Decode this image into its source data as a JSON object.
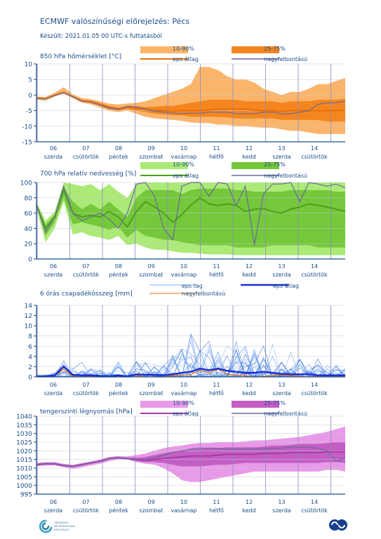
{
  "page": {
    "title": "ECMWF valószínűségi előrejelzés: Pécs",
    "subtitle": "Készült: 2021.01.05 00 UTC-s futtatásból",
    "logo_text": "ORSZÁGOS METEOROLÓGIAI SZOLGÁLAT"
  },
  "days": [
    {
      "num": "06",
      "name": "szerda"
    },
    {
      "num": "07",
      "name": "csütörtök"
    },
    {
      "num": "08",
      "name": "péntek"
    },
    {
      "num": "09",
      "name": "szombat"
    },
    {
      "num": "10",
      "name": "vasárnap"
    },
    {
      "num": "11",
      "name": "hétfő"
    },
    {
      "num": "12",
      "name": "kedd"
    },
    {
      "num": "13",
      "name": "szerda"
    },
    {
      "num": "14",
      "name": "csütörtök"
    }
  ],
  "chart_data": [
    {
      "type": "area",
      "title": "850 hPa hőmérséklet [°C]",
      "ylim": [
        -15,
        10
      ],
      "yticks": [
        -15,
        -10,
        -5,
        0,
        5,
        10
      ],
      "colors": {
        "band_outer": "#fbb56b",
        "band_inner": "#f5861f",
        "mean": "#e8700a",
        "hires": "#6a6a9a"
      },
      "legend": {
        "outer": "10-90%",
        "inner": "25-75%",
        "mean": "eps átlag",
        "hires": "nagyfelbontású"
      },
      "series": {
        "p10": [
          -1.5,
          -1.8,
          -0.5,
          0.4,
          -1.0,
          -2.5,
          -3.0,
          -4.0,
          -5.0,
          -5.5,
          -5.0,
          -6.0,
          -7.0,
          -7.5,
          -7.8,
          -8.0,
          -8.3,
          -8.8,
          -9.0,
          -9.0,
          -9.5,
          -9.5,
          -10.0,
          -10.0,
          -10.3,
          -10.5,
          -10.5,
          -11.0,
          -11.5,
          -11.5,
          -12.0,
          -12.5,
          -12.5,
          -12.5,
          -12.5
        ],
        "p25": [
          -1.2,
          -1.4,
          -0.2,
          0.6,
          -0.7,
          -2.0,
          -2.5,
          -3.5,
          -4.5,
          -5.0,
          -4.4,
          -5.0,
          -5.5,
          -6.0,
          -6.2,
          -6.5,
          -6.5,
          -7.0,
          -7.0,
          -7.0,
          -7.0,
          -7.2,
          -7.5,
          -7.5,
          -7.5,
          -7.5,
          -7.5,
          -8.0,
          -8.0,
          -8.0,
          -8.0,
          -8.0,
          -8.5,
          -8.5,
          -8.5
        ],
        "mean": [
          -1.0,
          -1.2,
          0.0,
          0.8,
          -0.5,
          -1.8,
          -2.2,
          -3.0,
          -4.0,
          -4.5,
          -4.0,
          -4.3,
          -4.6,
          -5.0,
          -5.0,
          -5.2,
          -5.0,
          -5.0,
          -5.0,
          -4.8,
          -4.5,
          -4.5,
          -4.5,
          -4.5,
          -4.8,
          -5.0,
          -5.0,
          -5.2,
          -5.0,
          -5.0,
          -5.0,
          -5.0,
          -5.0,
          -5.0,
          -4.8
        ],
        "p75": [
          -0.8,
          -1.0,
          0.2,
          1.0,
          -0.3,
          -1.5,
          -1.8,
          -2.6,
          -3.5,
          -4.0,
          -3.5,
          -3.6,
          -3.8,
          -3.8,
          -3.5,
          -3.5,
          -3.0,
          -2.5,
          -2.0,
          -1.5,
          -1.5,
          -1.5,
          -1.5,
          -2.0,
          -2.0,
          -2.0,
          -2.0,
          -2.5,
          -2.0,
          -2.0,
          -2.0,
          -1.5,
          -1.5,
          -1.5,
          -1.2
        ],
        "p90": [
          -0.5,
          -0.6,
          0.7,
          2.5,
          0.2,
          -1.0,
          -1.3,
          -2.0,
          -2.8,
          -3.0,
          -2.7,
          -2.5,
          -2.0,
          -1.0,
          0.0,
          1.0,
          2.0,
          3.5,
          9.0,
          9.0,
          8.0,
          6.0,
          5.0,
          5.0,
          4.0,
          2.0,
          1.0,
          0.0,
          1.0,
          1.0,
          2.0,
          3.5,
          3.5,
          4.5,
          5.5
        ],
        "hires": [
          -1.0,
          -1.2,
          -0.2,
          0.8,
          -0.6,
          -2.0,
          -2.3,
          -3.2,
          -4.2,
          -4.6,
          -3.6,
          -3.8,
          -4.5,
          -5.2,
          -5.5,
          -5.8,
          -6.0,
          -5.8,
          -5.8,
          -5.5,
          -5.5,
          -5.5,
          -6.0,
          -6.0,
          -6.0,
          -5.5,
          -5.5,
          -6.0,
          -6.0,
          -5.5,
          -5.0,
          -3.0,
          -2.5,
          -2.5,
          -2.0
        ]
      }
    },
    {
      "type": "area",
      "title": "700 hPa relatív nedvesség [%]",
      "ylim": [
        0,
        100
      ],
      "yticks": [
        0,
        20,
        40,
        60,
        80,
        100
      ],
      "colors": {
        "band_outer": "#acea78",
        "band_inner": "#74c83a",
        "mean": "#4f9e1c",
        "hires": "#6a6a9a"
      },
      "legend": {
        "outer": "10-90%",
        "inner": "25-75%",
        "mean": "eps átlag",
        "hires": "nagyfelbontású"
      },
      "series": {
        "p10": [
          65,
          22,
          40,
          75,
          32,
          35,
          30,
          28,
          25,
          30,
          18,
          20,
          15,
          12,
          12,
          10,
          8,
          8,
          7,
          6,
          6,
          6,
          5,
          5,
          5,
          5,
          5,
          5,
          5,
          5,
          5,
          5,
          5,
          5,
          5
        ],
        "p25": [
          70,
          30,
          48,
          80,
          45,
          48,
          45,
          42,
          38,
          42,
          28,
          38,
          30,
          28,
          25,
          25,
          22,
          20,
          18,
          18,
          18,
          18,
          15,
          15,
          15,
          15,
          18,
          18,
          18,
          18,
          18,
          15,
          15,
          15,
          15
        ],
        "mean": [
          70,
          40,
          55,
          90,
          60,
          55,
          57,
          55,
          62,
          55,
          42,
          62,
          75,
          68,
          60,
          48,
          58,
          70,
          80,
          72,
          70,
          72,
          70,
          62,
          65,
          66,
          62,
          60,
          65,
          68,
          72,
          70,
          68,
          65,
          62
        ],
        "p75": [
          72,
          45,
          58,
          93,
          75,
          65,
          72,
          65,
          75,
          65,
          55,
          80,
          90,
          90,
          90,
          90,
          85,
          90,
          92,
          92,
          92,
          92,
          90,
          90,
          88,
          88,
          88,
          88,
          90,
          90,
          90,
          90,
          90,
          88,
          88
        ],
        "p90": [
          75,
          50,
          62,
          100,
          98,
          95,
          98,
          90,
          98,
          88,
          80,
          98,
          100,
          100,
          100,
          100,
          100,
          100,
          100,
          100,
          100,
          100,
          100,
          100,
          100,
          100,
          100,
          100,
          100,
          100,
          100,
          100,
          100,
          100,
          100
        ],
        "hires": [
          72,
          35,
          55,
          95,
          60,
          50,
          55,
          60,
          52,
          40,
          60,
          98,
          100,
          82,
          40,
          25,
          95,
          100,
          100,
          82,
          100,
          98,
          70,
          95,
          18,
          85,
          98,
          98,
          100,
          75,
          100,
          98,
          95,
          98,
          93
        ]
      }
    },
    {
      "type": "line",
      "title": "6 órás csapadékösszeg [mm]",
      "ylim": [
        0,
        14
      ],
      "yticks": [
        0,
        2,
        4,
        6,
        8,
        10,
        12,
        14
      ],
      "colors": {
        "members": "#3a7be8",
        "mean": "#1c2fcf",
        "hires": "#e8700a"
      },
      "legend": {
        "members": "eps tag",
        "mean": "eps átlag",
        "hires": "nagyfelbontású"
      },
      "series": {
        "mean": [
          0.1,
          0.1,
          0.3,
          2.0,
          0.4,
          0.3,
          0.3,
          0.2,
          0.1,
          0.3,
          0.1,
          0.5,
          0.4,
          0.4,
          0.3,
          0.5,
          0.8,
          1.0,
          1.6,
          1.3,
          1.6,
          1.2,
          1.0,
          0.8,
          0.8,
          1.0,
          0.8,
          0.6,
          0.5,
          0.5,
          0.5,
          0.3,
          0.3,
          0.3,
          0.3
        ],
        "hires": [
          0.1,
          0.0,
          0.2,
          1.5,
          0.1,
          0.0,
          0.1,
          0.0,
          0.0,
          0.0,
          0.0,
          0.3,
          0.0,
          0.0,
          0.0,
          0.2,
          0.3,
          0.5,
          1.2,
          0.8,
          1.5,
          0.5,
          0.3,
          0.2,
          0.0,
          0.1,
          0.2,
          0.4,
          0.2,
          0.1,
          0.0,
          0.1,
          0.0,
          0.0,
          0.1
        ],
        "envelope": [
          0.5,
          0.6,
          1.5,
          3.2,
          1.8,
          3.0,
          1.8,
          1.5,
          1.0,
          3.0,
          1.0,
          3.5,
          3.0,
          2.5,
          2.5,
          4.5,
          6.5,
          8.5,
          9.2,
          8.5,
          9.2,
          8.5,
          7.5,
          6.5,
          5.5,
          6.5,
          7.5,
          6.0,
          5.0,
          4.5,
          4.5,
          4.0,
          3.5,
          3.0,
          2.5
        ]
      }
    },
    {
      "type": "area",
      "title": "tengerszinti légnyomás [hPa]",
      "ylim": [
        995,
        1040
      ],
      "yticks": [
        995,
        1000,
        1005,
        1010,
        1015,
        1020,
        1025,
        1030,
        1035,
        1040
      ],
      "colors": {
        "band_outer": "#e89ae8",
        "band_inner": "#c45ec4",
        "mean": "#a63ba6",
        "hires": "#6a6a9a"
      },
      "legend": {
        "outer": "10-90%",
        "inner": "25-75%",
        "mean": "eps átlag",
        "hires": "nagyfelbontású"
      },
      "series": {
        "p10": [
          1011,
          1011.5,
          1011.5,
          1010.5,
          1009.5,
          1010.5,
          1011.5,
          1012.5,
          1014,
          1015,
          1015,
          1013.5,
          1012.5,
          1012,
          1010,
          1007,
          1003,
          1002,
          1002,
          1003,
          1004,
          1005,
          1006,
          1007,
          1008,
          1008,
          1008,
          1008,
          1008,
          1008,
          1008,
          1008,
          1009,
          1009,
          1008
        ],
        "p25": [
          1011.5,
          1012,
          1012,
          1011,
          1010.5,
          1011.5,
          1012.5,
          1013.5,
          1015,
          1015.5,
          1015.2,
          1014,
          1013.5,
          1013.5,
          1013,
          1012,
          1011,
          1011,
          1011,
          1011.5,
          1012,
          1012,
          1012.5,
          1013,
          1013,
          1013,
          1013,
          1013,
          1013,
          1013,
          1013,
          1013,
          1013.5,
          1013.5,
          1013
        ],
        "mean": [
          1012,
          1012.5,
          1012.5,
          1011.5,
          1011,
          1012,
          1013,
          1014,
          1015.5,
          1016,
          1015.5,
          1015,
          1014.5,
          1015,
          1015.5,
          1016,
          1016.5,
          1017,
          1017,
          1017,
          1017.5,
          1018,
          1018,
          1018,
          1018,
          1018.5,
          1018.5,
          1018.5,
          1019,
          1019,
          1019,
          1019,
          1019.5,
          1019.5,
          1019.5
        ],
        "p75": [
          1012.5,
          1013,
          1013,
          1012,
          1011.5,
          1012.5,
          1013.5,
          1014.5,
          1016,
          1016.5,
          1016,
          1016,
          1016.5,
          1017.5,
          1018.5,
          1019.5,
          1020,
          1021,
          1021,
          1021.5,
          1021.5,
          1022,
          1022,
          1022,
          1022,
          1022.5,
          1023,
          1023,
          1023.5,
          1024,
          1024,
          1024,
          1024.5,
          1025,
          1025
        ],
        "p90": [
          1013,
          1013.5,
          1013.5,
          1012.5,
          1012,
          1013,
          1014,
          1015,
          1016.5,
          1017,
          1016.8,
          1017.5,
          1018.5,
          1020,
          1021.5,
          1022.5,
          1023,
          1024,
          1024.5,
          1024.5,
          1025,
          1025,
          1025,
          1025.5,
          1026,
          1026,
          1026.5,
          1027,
          1027.5,
          1028,
          1029,
          1030,
          1031,
          1032.5,
          1034
        ],
        "hires": [
          1012,
          1012.5,
          1012.5,
          1011.5,
          1011,
          1012,
          1013,
          1014,
          1015.5,
          1016,
          1015.5,
          1015,
          1015,
          1016,
          1017.5,
          1019,
          1020,
          1021,
          1021.5,
          1021.5,
          1021.5,
          1021,
          1021,
          1021,
          1021,
          1021,
          1021.5,
          1021.5,
          1022,
          1022,
          1022,
          1021.5,
          1020,
          1014,
          1016
        ]
      }
    }
  ]
}
